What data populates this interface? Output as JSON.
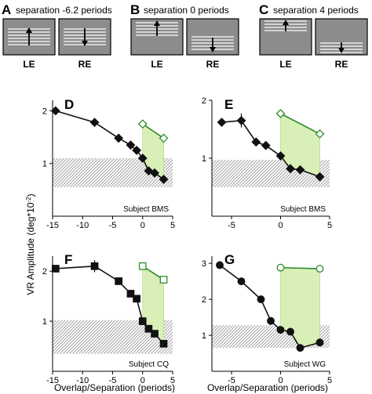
{
  "stimulus_panels": [
    {
      "letter": "A",
      "title": "separation -6.2 periods",
      "left_label": "LE",
      "right_label": "RE"
    },
    {
      "letter": "B",
      "title": "separation 0 periods",
      "left_label": "LE",
      "right_label": "RE"
    },
    {
      "letter": "C",
      "title": "separation 4 periods",
      "left_label": "LE",
      "right_label": "RE"
    }
  ],
  "colors": {
    "black_series": "#111111",
    "green_series": "#2e8b2e",
    "green_fill": "#d9efb8",
    "noise_band": "#9a9a9a",
    "stimulus_bg": "#8c8c8c",
    "grating_line": "#ffffff"
  },
  "y_axis_label": "VR Amplitude (deg*10",
  "y_axis_exponent": "-2",
  "y_axis_close": ")",
  "x_axis_label": "Overlap/Separation (periods)",
  "chart_data": [
    {
      "panel": "D",
      "type": "line",
      "subject_label": "Subject BMS",
      "xlim": [
        -15,
        5
      ],
      "ylim": [
        0,
        2.2
      ],
      "xticks": [
        -15,
        -10,
        -5,
        0,
        5
      ],
      "yticks": [
        1,
        2
      ],
      "noise_band": [
        0.55,
        1.1
      ],
      "series": [
        {
          "marker": "diamond-filled",
          "x": [
            -14.5,
            -8,
            -4,
            -2,
            -1,
            0,
            1,
            2,
            3.5
          ],
          "y": [
            2.0,
            1.78,
            1.48,
            1.35,
            1.25,
            1.1,
            0.86,
            0.82,
            0.7
          ],
          "err": [
            0.05,
            0.05,
            0.05,
            0.05,
            0.06,
            0.05,
            0.05,
            0.05,
            0.04
          ]
        },
        {
          "marker": "diamond-open",
          "x": [
            0,
            3.5
          ],
          "y": [
            1.75,
            1.48
          ],
          "err": [
            0.04,
            0.04
          ]
        }
      ]
    },
    {
      "panel": "E",
      "type": "line",
      "subject_label": "Subject BMS",
      "xlim": [
        -7,
        5
      ],
      "ylim": [
        0,
        2.0
      ],
      "xticks": [
        -5,
        0,
        5
      ],
      "yticks": [
        1,
        2
      ],
      "noise_band": [
        0.5,
        0.97
      ],
      "series": [
        {
          "marker": "diamond-filled",
          "x": [
            -6,
            -4,
            -2.5,
            -1.5,
            0,
            1,
            2,
            4
          ],
          "y": [
            1.62,
            1.65,
            1.28,
            1.22,
            1.04,
            0.82,
            0.8,
            0.68
          ],
          "err": [
            0.06,
            0.12,
            0.06,
            0.06,
            0.06,
            0.05,
            0.05,
            0.05
          ]
        },
        {
          "marker": "diamond-open",
          "x": [
            0,
            4
          ],
          "y": [
            1.77,
            1.42
          ],
          "err": [
            0.05,
            0.05
          ]
        }
      ]
    },
    {
      "panel": "F",
      "type": "line",
      "subject_label": "Subject CQ",
      "xlim": [
        -15,
        5
      ],
      "ylim": [
        0,
        2.3
      ],
      "xticks": [
        -15,
        -10,
        -5,
        0,
        5
      ],
      "yticks": [
        1,
        2
      ],
      "noise_band": [
        0.35,
        1.02
      ],
      "series": [
        {
          "marker": "square-filled",
          "x": [
            -14.5,
            -8,
            -4,
            -2,
            -1,
            0,
            1,
            2,
            3.5
          ],
          "y": [
            2.05,
            2.1,
            1.8,
            1.55,
            1.45,
            1.0,
            0.85,
            0.75,
            0.55
          ],
          "err": [
            0.05,
            0.12,
            0.07,
            0.06,
            0.06,
            0.05,
            0.05,
            0.05,
            0.04
          ]
        },
        {
          "marker": "square-open",
          "x": [
            0,
            3.5
          ],
          "y": [
            2.1,
            1.83
          ],
          "err": [
            0.05,
            0.05
          ]
        }
      ]
    },
    {
      "panel": "G",
      "type": "line",
      "subject_label": "Subject WG",
      "xlim": [
        -7,
        5
      ],
      "ylim": [
        0,
        3.2
      ],
      "xticks": [
        -5,
        0,
        5
      ],
      "yticks": [
        1,
        2,
        3
      ],
      "noise_band": [
        0.65,
        1.28
      ],
      "series": [
        {
          "marker": "circle-filled",
          "x": [
            -6.2,
            -4,
            -2,
            -1,
            0,
            1,
            2,
            4
          ],
          "y": [
            2.95,
            2.5,
            2.0,
            1.4,
            1.15,
            1.1,
            0.65,
            0.8
          ],
          "err": [
            0.04,
            0.04,
            0.04,
            0.04,
            0.04,
            0.04,
            0.04,
            0.04
          ]
        },
        {
          "marker": "circle-open",
          "x": [
            0,
            4
          ],
          "y": [
            2.88,
            2.85
          ],
          "err": [
            0.03,
            0.03
          ]
        }
      ]
    }
  ]
}
